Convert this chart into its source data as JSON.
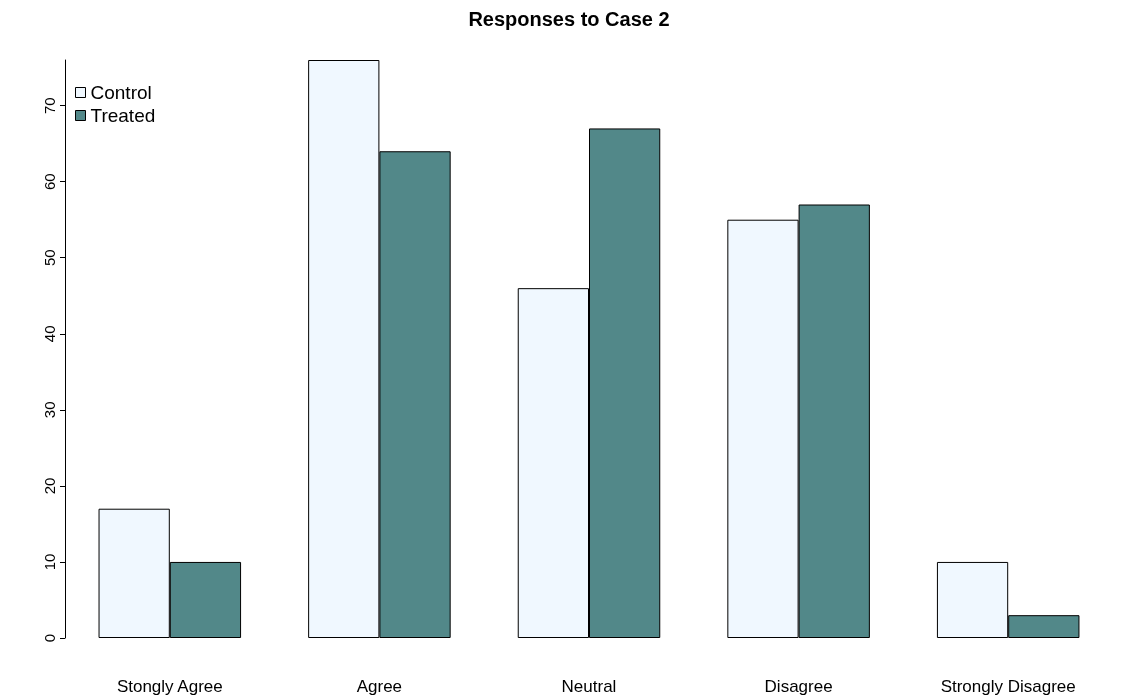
{
  "chart_data": {
    "type": "bar",
    "title": "Responses to Case 2",
    "categories": [
      "Stongly Agree",
      "Agree",
      "Neutral",
      "Disagree",
      "Strongly Disagree"
    ],
    "series": [
      {
        "name": "Control",
        "color": "#f0f8ff",
        "values": [
          17,
          76,
          46,
          55,
          10
        ]
      },
      {
        "name": "Treated",
        "color": "#528889",
        "values": [
          10,
          64,
          67,
          57,
          3
        ]
      }
    ],
    "ylim": [
      0,
      76
    ],
    "yticks": [
      0,
      10,
      20,
      30,
      40,
      50,
      60,
      70
    ],
    "grid": false,
    "legend": "top left"
  }
}
